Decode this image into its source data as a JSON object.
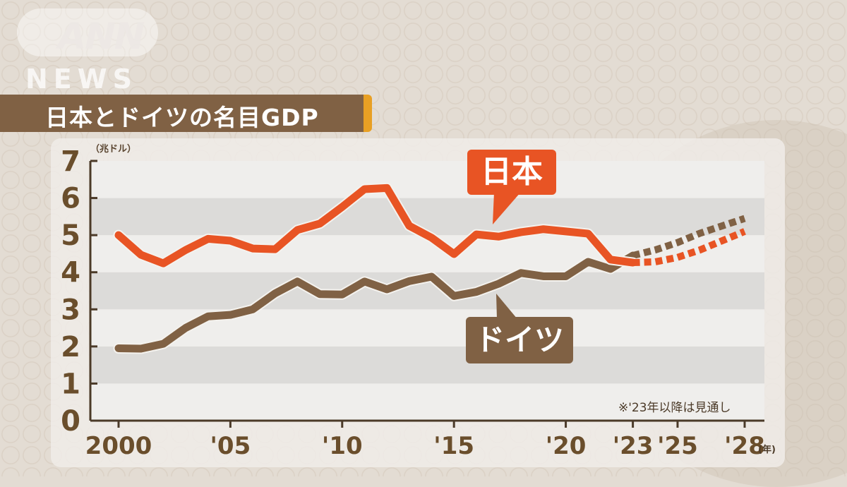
{
  "header": {
    "logo_top": "ANN",
    "logo_bottom": "NEWS",
    "title": "日本とドイツの名目GDP"
  },
  "colors": {
    "japan": "#e85424",
    "germany": "#806144",
    "title_bar": "#806144",
    "title_accent": "#e8a024",
    "axis": "#4b3a28"
  },
  "labels": {
    "unit": "（兆ドル）",
    "japan_bubble": "日本",
    "germany_bubble": "ドイツ",
    "forecast_note": "※'23年以降は見通し",
    "year_unit": "(年)"
  },
  "chart_data": {
    "type": "line",
    "title": "日本とドイツの名目GDP",
    "xlabel": "(年)",
    "ylabel": "（兆ドル）",
    "ylim": [
      0,
      7
    ],
    "xlim": [
      2000,
      2028
    ],
    "y_ticks": [
      0,
      1,
      2,
      3,
      4,
      5,
      6,
      7
    ],
    "x_ticks": [
      {
        "year": 2000,
        "label": "2000"
      },
      {
        "year": 2005,
        "label": "'05"
      },
      {
        "year": 2010,
        "label": "'10"
      },
      {
        "year": 2015,
        "label": "'15"
      },
      {
        "year": 2020,
        "label": "'20"
      },
      {
        "year": 2023,
        "label": "'23"
      },
      {
        "year": 2025,
        "label": "'25"
      },
      {
        "year": 2028,
        "label": "'28"
      }
    ],
    "grid": "alternating horizontal bands",
    "forecast_from": 2023,
    "annotation": "※'23年以降は見通し",
    "x": [
      2000,
      2001,
      2002,
      2003,
      2004,
      2005,
      2006,
      2007,
      2008,
      2009,
      2010,
      2011,
      2012,
      2013,
      2014,
      2015,
      2016,
      2017,
      2018,
      2019,
      2020,
      2021,
      2022,
      2023,
      2024,
      2025,
      2026,
      2027,
      2028
    ],
    "series": [
      {
        "name": "日本",
        "color": "#e85424",
        "values": [
          5.0,
          4.47,
          4.24,
          4.6,
          4.9,
          4.85,
          4.64,
          4.62,
          5.14,
          5.31,
          5.76,
          6.24,
          6.27,
          5.25,
          4.93,
          4.49,
          5.02,
          4.96,
          5.08,
          5.16,
          5.1,
          5.04,
          4.34,
          4.26,
          4.28,
          4.4,
          4.6,
          4.85,
          5.1
        ]
      },
      {
        "name": "ドイツ",
        "color": "#806144",
        "values": [
          1.95,
          1.94,
          2.07,
          2.5,
          2.81,
          2.85,
          3.0,
          3.43,
          3.75,
          3.41,
          3.4,
          3.75,
          3.54,
          3.76,
          3.88,
          3.36,
          3.47,
          3.69,
          3.98,
          3.89,
          3.89,
          4.28,
          4.09,
          4.45,
          4.6,
          4.8,
          5.05,
          5.25,
          5.45
        ]
      }
    ]
  }
}
